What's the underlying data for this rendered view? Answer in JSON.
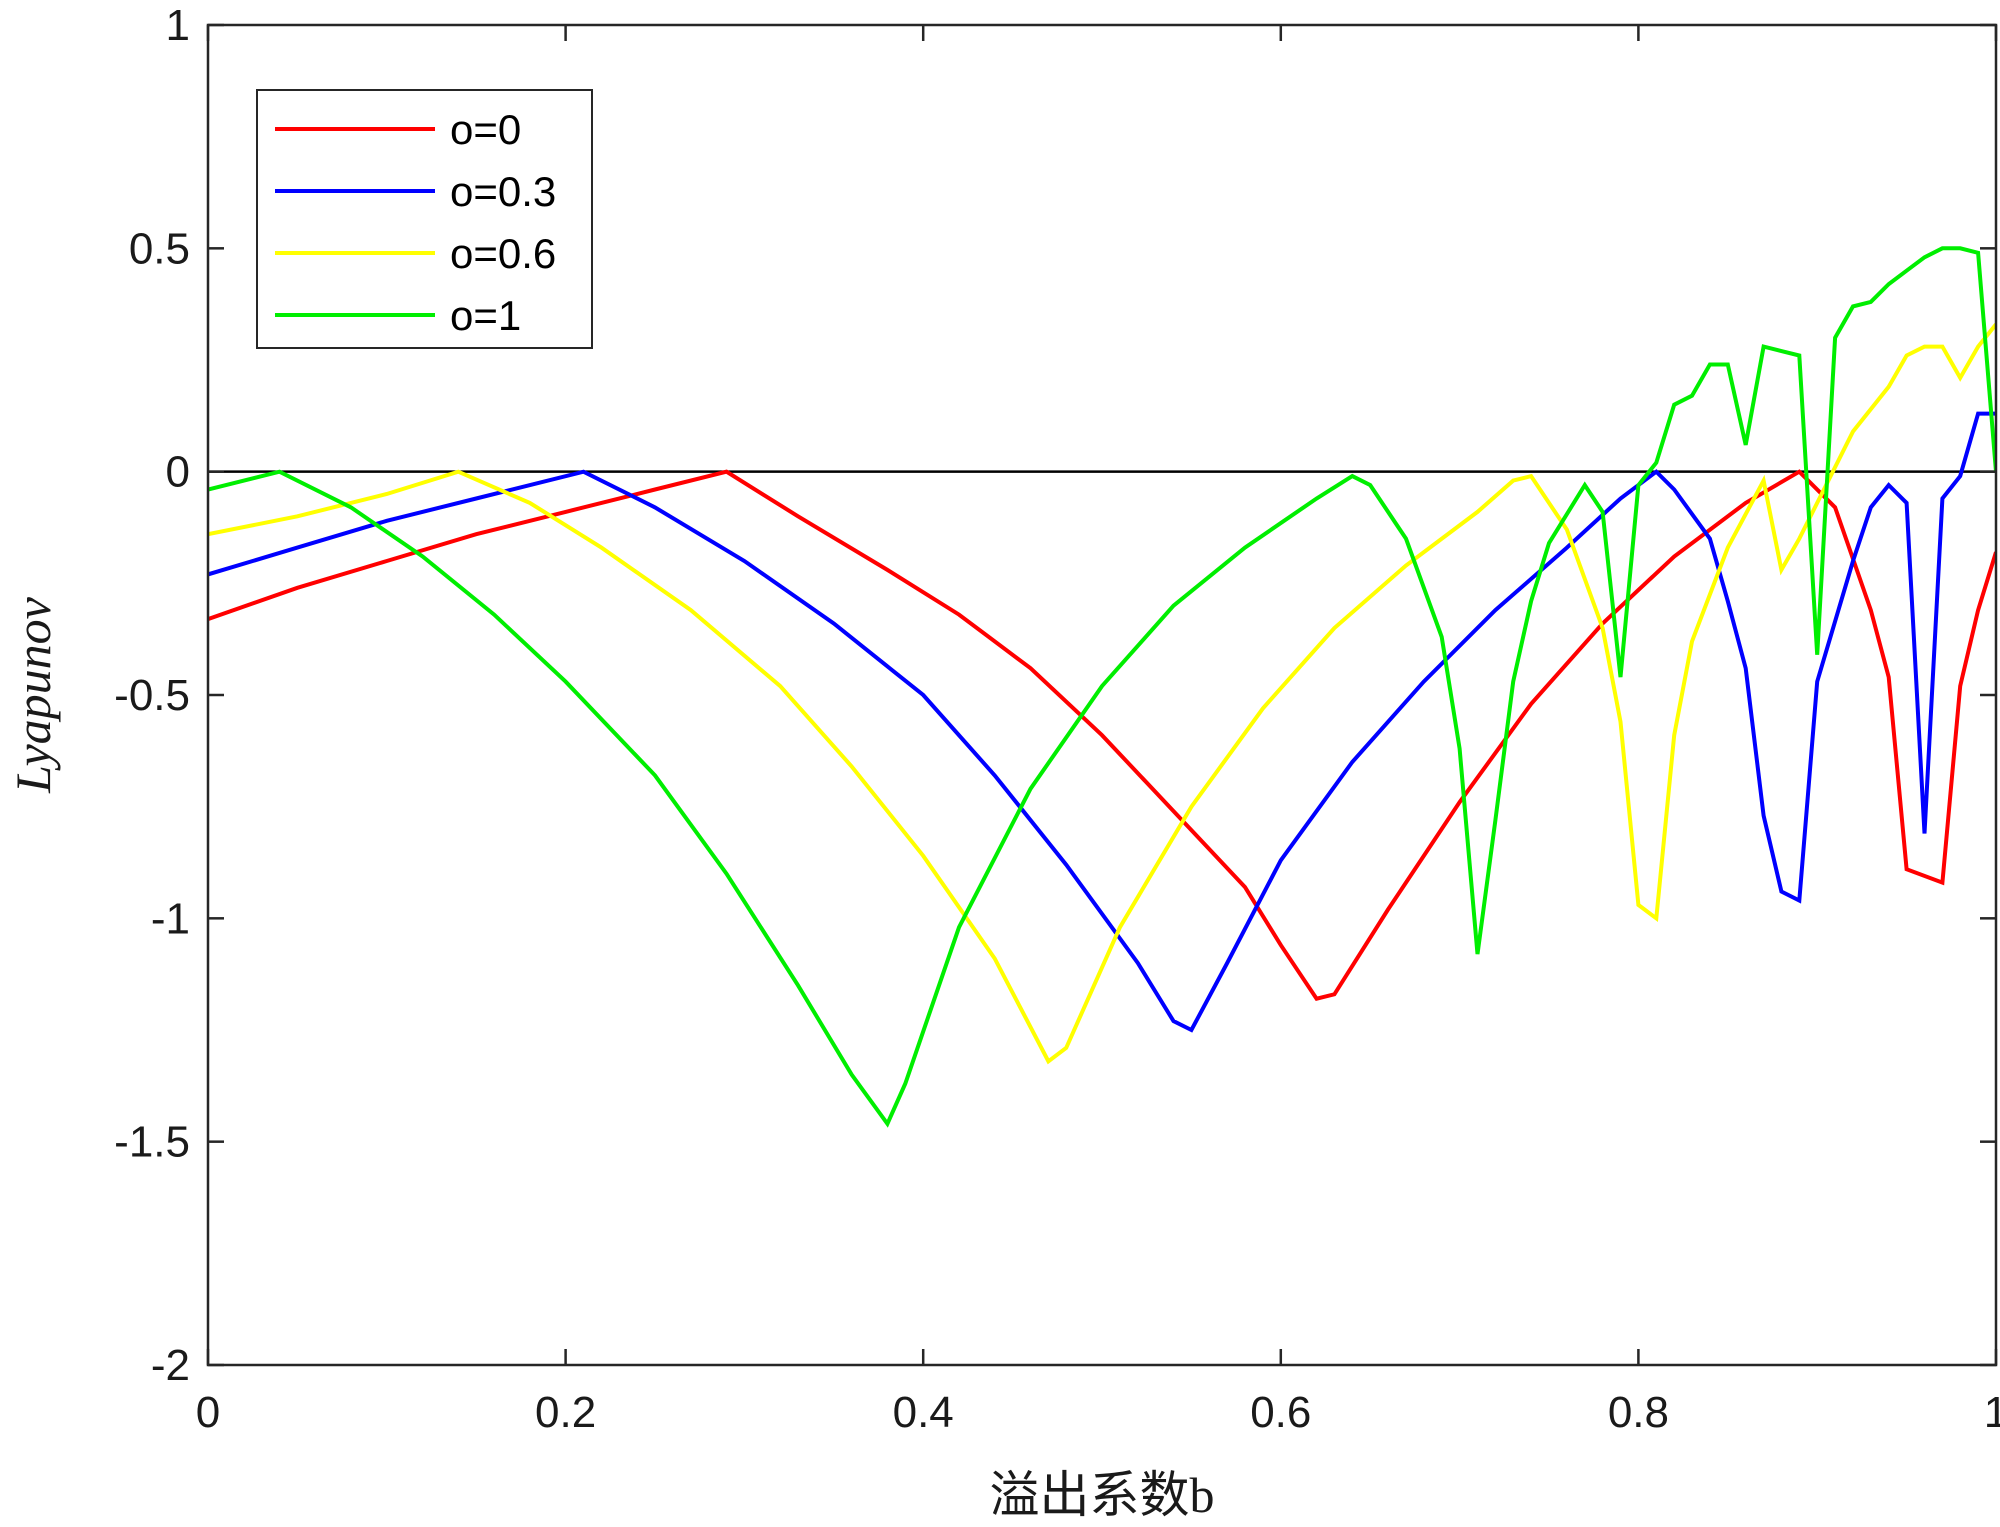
{
  "chart_data": {
    "type": "line",
    "xlabel": "溢出系数b",
    "ylabel": "Lyapunov",
    "xlim": [
      0,
      1
    ],
    "ylim": [
      -2,
      1
    ],
    "xticks": [
      0,
      0.2,
      0.4,
      0.6,
      0.8,
      1
    ],
    "xtick_labels": [
      "0",
      "0.2",
      "0.4",
      "0.6",
      "0.8",
      "1"
    ],
    "yticks": [
      1,
      0.5,
      0,
      -0.5,
      -1,
      -1.5,
      -2
    ],
    "ytick_labels": [
      "1",
      "0.5",
      "0",
      "-0.5",
      "-1",
      "-1.5",
      "-2"
    ],
    "grid": false,
    "legend_position": "top-left",
    "reference_line_y": 0,
    "series": [
      {
        "name": "o=0",
        "color": "#ff0000",
        "points": [
          [
            0,
            -0.33
          ],
          [
            0.05,
            -0.26
          ],
          [
            0.1,
            -0.2
          ],
          [
            0.15,
            -0.14
          ],
          [
            0.2,
            -0.09
          ],
          [
            0.25,
            -0.04
          ],
          [
            0.29,
            0
          ],
          [
            0.33,
            -0.1
          ],
          [
            0.38,
            -0.22
          ],
          [
            0.42,
            -0.32
          ],
          [
            0.46,
            -0.44
          ],
          [
            0.5,
            -0.59
          ],
          [
            0.54,
            -0.76
          ],
          [
            0.58,
            -0.93
          ],
          [
            0.6,
            -1.06
          ],
          [
            0.62,
            -1.18
          ],
          [
            0.63,
            -1.17
          ],
          [
            0.66,
            -0.98
          ],
          [
            0.7,
            -0.74
          ],
          [
            0.74,
            -0.52
          ],
          [
            0.78,
            -0.34
          ],
          [
            0.82,
            -0.19
          ],
          [
            0.86,
            -0.07
          ],
          [
            0.89,
            0
          ],
          [
            0.91,
            -0.08
          ],
          [
            0.93,
            -0.31
          ],
          [
            0.94,
            -0.46
          ],
          [
            0.95,
            -0.89
          ],
          [
            0.97,
            -0.92
          ],
          [
            0.98,
            -0.48
          ],
          [
            0.99,
            -0.31
          ],
          [
            1,
            -0.18
          ]
        ]
      },
      {
        "name": "o=0.3",
        "color": "#0000ff",
        "points": [
          [
            0,
            -0.23
          ],
          [
            0.05,
            -0.17
          ],
          [
            0.1,
            -0.11
          ],
          [
            0.15,
            -0.06
          ],
          [
            0.21,
            0
          ],
          [
            0.25,
            -0.08
          ],
          [
            0.3,
            -0.2
          ],
          [
            0.35,
            -0.34
          ],
          [
            0.4,
            -0.5
          ],
          [
            0.44,
            -0.68
          ],
          [
            0.48,
            -0.88
          ],
          [
            0.52,
            -1.1
          ],
          [
            0.54,
            -1.23
          ],
          [
            0.55,
            -1.25
          ],
          [
            0.57,
            -1.1
          ],
          [
            0.6,
            -0.87
          ],
          [
            0.64,
            -0.65
          ],
          [
            0.68,
            -0.47
          ],
          [
            0.72,
            -0.31
          ],
          [
            0.76,
            -0.17
          ],
          [
            0.79,
            -0.06
          ],
          [
            0.81,
            0
          ],
          [
            0.82,
            -0.04
          ],
          [
            0.84,
            -0.15
          ],
          [
            0.85,
            -0.29
          ],
          [
            0.86,
            -0.44
          ],
          [
            0.87,
            -0.77
          ],
          [
            0.88,
            -0.94
          ],
          [
            0.89,
            -0.96
          ],
          [
            0.9,
            -0.47
          ],
          [
            0.92,
            -0.2
          ],
          [
            0.93,
            -0.08
          ],
          [
            0.94,
            -0.03
          ],
          [
            0.95,
            -0.07
          ],
          [
            0.96,
            -0.81
          ],
          [
            0.97,
            -0.06
          ],
          [
            0.98,
            -0.01
          ],
          [
            0.99,
            0.13
          ],
          [
            1,
            0.13
          ]
        ]
      },
      {
        "name": "o=0.6",
        "color": "#ffff00",
        "points": [
          [
            0,
            -0.14
          ],
          [
            0.05,
            -0.1
          ],
          [
            0.1,
            -0.05
          ],
          [
            0.14,
            0
          ],
          [
            0.18,
            -0.07
          ],
          [
            0.22,
            -0.17
          ],
          [
            0.27,
            -0.31
          ],
          [
            0.32,
            -0.48
          ],
          [
            0.36,
            -0.66
          ],
          [
            0.4,
            -0.86
          ],
          [
            0.44,
            -1.09
          ],
          [
            0.47,
            -1.32
          ],
          [
            0.48,
            -1.29
          ],
          [
            0.51,
            -1.02
          ],
          [
            0.55,
            -0.75
          ],
          [
            0.59,
            -0.53
          ],
          [
            0.63,
            -0.35
          ],
          [
            0.67,
            -0.21
          ],
          [
            0.71,
            -0.09
          ],
          [
            0.73,
            -0.02
          ],
          [
            0.74,
            -0.01
          ],
          [
            0.76,
            -0.13
          ],
          [
            0.78,
            -0.35
          ],
          [
            0.79,
            -0.56
          ],
          [
            0.8,
            -0.97
          ],
          [
            0.81,
            -1
          ],
          [
            0.82,
            -0.59
          ],
          [
            0.83,
            -0.38
          ],
          [
            0.85,
            -0.17
          ],
          [
            0.87,
            -0.02
          ],
          [
            0.88,
            -0.22
          ],
          [
            0.89,
            -0.15
          ],
          [
            0.9,
            -0.07
          ],
          [
            0.92,
            0.09
          ],
          [
            0.94,
            0.19
          ],
          [
            0.95,
            0.26
          ],
          [
            0.96,
            0.28
          ],
          [
            0.97,
            0.28
          ],
          [
            0.98,
            0.21
          ],
          [
            0.99,
            0.28
          ],
          [
            1,
            0.33
          ]
        ]
      },
      {
        "name": "o=1",
        "color": "#00ee00",
        "points": [
          [
            0,
            -0.04
          ],
          [
            0.04,
            0
          ],
          [
            0.08,
            -0.08
          ],
          [
            0.12,
            -0.19
          ],
          [
            0.16,
            -0.32
          ],
          [
            0.2,
            -0.47
          ],
          [
            0.25,
            -0.68
          ],
          [
            0.29,
            -0.9
          ],
          [
            0.33,
            -1.15
          ],
          [
            0.36,
            -1.35
          ],
          [
            0.38,
            -1.46
          ],
          [
            0.39,
            -1.37
          ],
          [
            0.42,
            -1.02
          ],
          [
            0.46,
            -0.71
          ],
          [
            0.5,
            -0.48
          ],
          [
            0.54,
            -0.3
          ],
          [
            0.58,
            -0.17
          ],
          [
            0.62,
            -0.06
          ],
          [
            0.64,
            -0.01
          ],
          [
            0.65,
            -0.03
          ],
          [
            0.67,
            -0.15
          ],
          [
            0.69,
            -0.37
          ],
          [
            0.7,
            -0.62
          ],
          [
            0.71,
            -1.08
          ],
          [
            0.72,
            -0.78
          ],
          [
            0.73,
            -0.47
          ],
          [
            0.74,
            -0.29
          ],
          [
            0.75,
            -0.16
          ],
          [
            0.77,
            -0.03
          ],
          [
            0.78,
            -0.09
          ],
          [
            0.79,
            -0.46
          ],
          [
            0.8,
            -0.03
          ],
          [
            0.81,
            0.02
          ],
          [
            0.82,
            0.15
          ],
          [
            0.83,
            0.17
          ],
          [
            0.84,
            0.24
          ],
          [
            0.85,
            0.24
          ],
          [
            0.86,
            0.06
          ],
          [
            0.87,
            0.28
          ],
          [
            0.88,
            0.27
          ],
          [
            0.89,
            0.26
          ],
          [
            0.9,
            -0.41
          ],
          [
            0.91,
            0.3
          ],
          [
            0.92,
            0.37
          ],
          [
            0.93,
            0.38
          ],
          [
            0.94,
            0.42
          ],
          [
            0.95,
            0.45
          ],
          [
            0.96,
            0.48
          ],
          [
            0.97,
            0.5
          ],
          [
            0.98,
            0.5
          ],
          [
            0.99,
            0.49
          ],
          [
            1,
            0
          ]
        ]
      }
    ]
  }
}
